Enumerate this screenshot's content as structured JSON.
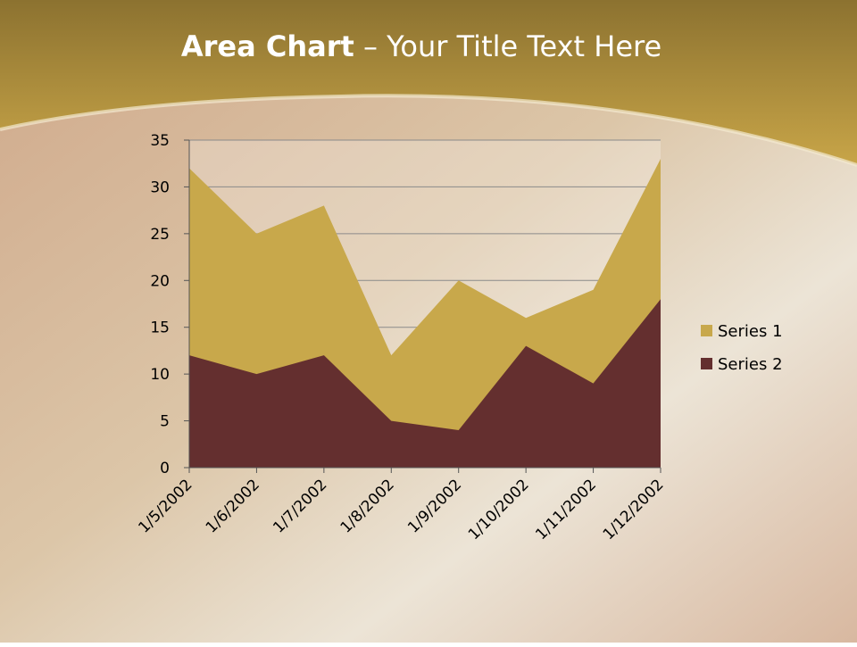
{
  "chart_data": {
    "type": "area",
    "title": {
      "bold": "Area Chart",
      "rest": "– Your Title Text Here"
    },
    "categories": [
      "1/5/2002",
      "1/6/2002",
      "1/7/2002",
      "1/8/2002",
      "1/9/2002",
      "1/10/2002",
      "1/11/2002",
      "1/12/2002"
    ],
    "series": [
      {
        "name": "Series 1",
        "color": "#c8a84b",
        "values": [
          32,
          25,
          28,
          12,
          20,
          16,
          19,
          33
        ]
      },
      {
        "name": "Series 2",
        "color": "#642f2f",
        "values": [
          12,
          10,
          12,
          5,
          4,
          13,
          9,
          18
        ]
      }
    ],
    "ylim": [
      0,
      35
    ],
    "yticks": [
      0,
      5,
      10,
      15,
      20,
      25,
      30,
      35
    ],
    "grid": true,
    "legend": "right"
  }
}
